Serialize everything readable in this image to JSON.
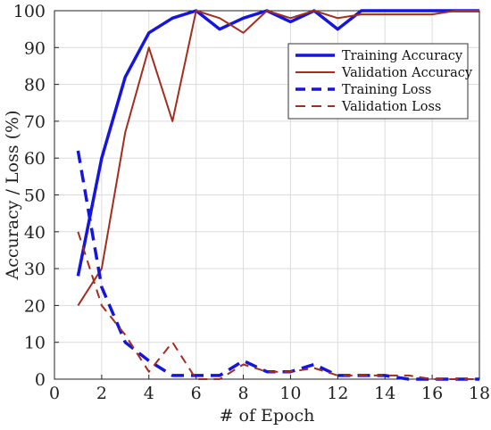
{
  "chart_data": {
    "type": "line",
    "xlabel": "# of Epoch",
    "ylabel": "Accuracy / Loss (%)",
    "xlim": [
      0,
      18
    ],
    "ylim": [
      0,
      100
    ],
    "xticks": [
      0,
      2,
      4,
      6,
      8,
      10,
      12,
      14,
      16,
      18
    ],
    "yticks": [
      0,
      10,
      20,
      30,
      40,
      50,
      60,
      70,
      80,
      90,
      100
    ],
    "grid": true,
    "legend_position": "top-right",
    "x": [
      1,
      2,
      3,
      4,
      5,
      6,
      7,
      8,
      9,
      10,
      11,
      12,
      13,
      14,
      15,
      16,
      17,
      18
    ],
    "series": [
      {
        "name": "Training Accuracy",
        "color": "#1515e0",
        "style": "solid",
        "width": 3.5,
        "values": [
          28,
          60,
          82,
          94,
          98,
          100,
          95,
          98,
          100,
          97,
          100,
          95,
          100,
          100,
          100,
          100,
          100,
          100
        ]
      },
      {
        "name": "Validation Accuracy",
        "color": "#a32d1e",
        "style": "solid",
        "width": 2,
        "values": [
          20,
          30,
          67,
          90,
          70,
          100,
          98,
          94,
          100,
          98,
          100,
          98,
          99,
          99,
          99,
          99,
          100,
          100
        ]
      },
      {
        "name": "Training Loss",
        "color": "#1515e0",
        "style": "dashed",
        "width": 3.5,
        "values": [
          62,
          25,
          10,
          5,
          1,
          1,
          1,
          5,
          2,
          2,
          4,
          1,
          1,
          1,
          0,
          0,
          0,
          0
        ]
      },
      {
        "name": "Validation Loss",
        "color": "#a32d1e",
        "style": "dashed",
        "width": 2,
        "values": [
          40,
          20,
          12,
          2,
          10,
          0,
          0,
          4,
          2,
          2,
          3,
          1,
          1,
          1,
          1,
          0,
          0,
          0
        ]
      }
    ]
  }
}
